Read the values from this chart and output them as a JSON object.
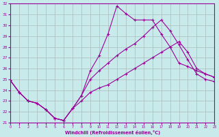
{
  "xlabel": "Windchill (Refroidissement éolien,°C)",
  "line_color": "#990099",
  "bg_color": "#c8eaea",
  "grid_color": "#aabbbb",
  "curve1_x": [
    0,
    1,
    2,
    3,
    4,
    5,
    6,
    7,
    8,
    9,
    10,
    11,
    12,
    13,
    14,
    15,
    16,
    17,
    18,
    19,
    20,
    21,
    22,
    23
  ],
  "curve1_y": [
    24.9,
    23.8,
    23.0,
    22.8,
    22.2,
    21.4,
    21.2,
    22.3,
    23.5,
    25.8,
    27.2,
    29.2,
    31.8,
    31.1,
    30.5,
    30.5,
    30.5,
    29.2,
    28.0,
    26.5,
    26.2,
    25.8,
    25.5,
    25.2
  ],
  "curve2_x": [
    0,
    1,
    2,
    3,
    4,
    5,
    6,
    7,
    8,
    9,
    10,
    11,
    12,
    13,
    14,
    15,
    16,
    17,
    18,
    19,
    20,
    21,
    22,
    23
  ],
  "curve2_y": [
    24.9,
    23.8,
    23.0,
    22.8,
    22.2,
    21.4,
    21.2,
    22.3,
    23.5,
    25.0,
    25.8,
    26.5,
    27.2,
    27.8,
    28.3,
    29.0,
    29.8,
    30.5,
    29.5,
    28.2,
    26.8,
    25.5,
    25.0,
    24.8
  ],
  "curve3_x": [
    0,
    1,
    2,
    3,
    4,
    5,
    6,
    7,
    8,
    9,
    10,
    11,
    12,
    13,
    14,
    15,
    16,
    17,
    18,
    19,
    20,
    21,
    22,
    23
  ],
  "curve3_y": [
    24.9,
    23.8,
    23.0,
    22.8,
    22.2,
    21.4,
    21.2,
    22.3,
    23.0,
    23.8,
    24.2,
    24.5,
    25.0,
    25.5,
    26.0,
    26.5,
    27.0,
    27.5,
    28.0,
    28.5,
    27.5,
    26.0,
    25.5,
    25.2
  ],
  "ylim": [
    21,
    32
  ],
  "xlim": [
    0,
    23
  ],
  "yticks": [
    21,
    22,
    23,
    24,
    25,
    26,
    27,
    28,
    29,
    30,
    31,
    32
  ],
  "xticks": [
    0,
    1,
    2,
    3,
    4,
    5,
    6,
    7,
    8,
    9,
    10,
    11,
    12,
    13,
    14,
    15,
    16,
    17,
    18,
    19,
    20,
    21,
    22,
    23
  ]
}
